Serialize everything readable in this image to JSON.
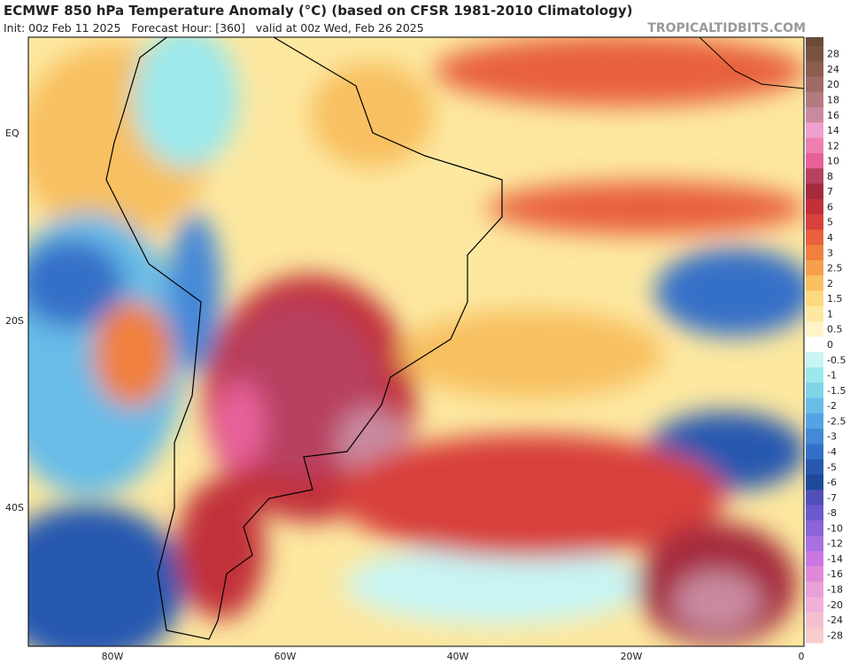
{
  "header": {
    "title": "ECMWF 850 hPa Temperature Anomaly (°C) (based on CFSR 1981-2010 Climatology)",
    "subtitle": "Init: 00z Feb 11 2025   Forecast Hour: [360]   valid at 00z Wed, Feb 26 2025",
    "watermark": "TROPICALTIDBITS.COM"
  },
  "map": {
    "lat_labels": [
      "EQ",
      "20S",
      "40S"
    ],
    "lon_labels": [
      "80W",
      "60W",
      "40W",
      "20W",
      "0"
    ]
  },
  "colorbar": {
    "levels": [
      {
        "label": "28",
        "color": "#7a5240"
      },
      {
        "label": "24",
        "color": "#8c5e4e"
      },
      {
        "label": "20",
        "color": "#a06a66"
      },
      {
        "label": "18",
        "color": "#b37a80"
      },
      {
        "label": "16",
        "color": "#c98aa0"
      },
      {
        "label": "14",
        "color": "#f0a0d0"
      },
      {
        "label": "12",
        "color": "#ee7fb0"
      },
      {
        "label": "10",
        "color": "#e8609a"
      },
      {
        "label": "8",
        "color": "#b84060"
      },
      {
        "label": "7",
        "color": "#a52a3c"
      },
      {
        "label": "6",
        "color": "#c2303a"
      },
      {
        "label": "5",
        "color": "#d8403a"
      },
      {
        "label": "4",
        "color": "#e8603c"
      },
      {
        "label": "3",
        "color": "#f0803c"
      },
      {
        "label": "2.5",
        "color": "#f4a04c"
      },
      {
        "label": "2",
        "color": "#f8c060"
      },
      {
        "label": "1.5",
        "color": "#fcd880"
      },
      {
        "label": "1",
        "color": "#fde8a0"
      },
      {
        "label": "0.5",
        "color": "#fff4c8"
      },
      {
        "label": "0",
        "color": "#ffffff"
      },
      {
        "label": "-0.5",
        "color": "#c8f4f4"
      },
      {
        "label": "-1",
        "color": "#9ce8ec"
      },
      {
        "label": "-1.5",
        "color": "#80d4e8"
      },
      {
        "label": "-2",
        "color": "#68bce8"
      },
      {
        "label": "-2.5",
        "color": "#54a4e4"
      },
      {
        "label": "-3",
        "color": "#4488d8"
      },
      {
        "label": "-4",
        "color": "#3470c8"
      },
      {
        "label": "-5",
        "color": "#2858b0"
      },
      {
        "label": "-6",
        "color": "#1e4898"
      },
      {
        "label": "-7",
        "color": "#5050b8"
      },
      {
        "label": "-8",
        "color": "#6a5acc"
      },
      {
        "label": "-10",
        "color": "#8a64d8"
      },
      {
        "label": "-12",
        "color": "#a870e0"
      },
      {
        "label": "-14",
        "color": "#c878e0"
      },
      {
        "label": "-16",
        "color": "#e088d8"
      },
      {
        "label": "-18",
        "color": "#e8a0d8"
      },
      {
        "label": "-20",
        "color": "#f0b0d8"
      },
      {
        "label": "-24",
        "color": "#f4c0d0"
      },
      {
        "label": "-28",
        "color": "#f8cccc"
      }
    ]
  }
}
